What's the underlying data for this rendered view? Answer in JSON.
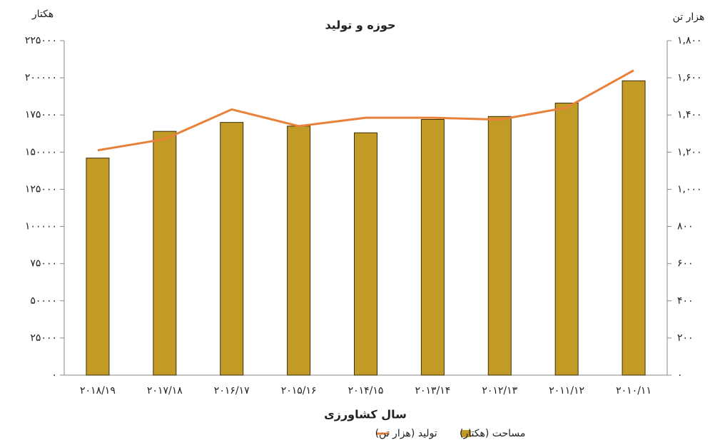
{
  "chart_data": {
    "type": "bar_line",
    "title": "حوزه و تولید",
    "y_label": "هکتار",
    "y2_label": "هزار تن",
    "x_label": "سال کشاورزی",
    "categories": [
      "۲۰۱۸/۱۹",
      "۲۰۱۷/۱۸",
      "۲۰۱۶/۱۷",
      "۲۰۱۵/۱۶",
      "۲۰۱۴/۱۵",
      "۲۰۱۳/۱۴",
      "۲۰۱۲/۱۳",
      "۲۰۱۱/۱۲",
      "۲۰۱۰/۱۱"
    ],
    "series": [
      {
        "name": "مساحت (هکتار)",
        "type": "bar",
        "color": "#c29a26",
        "values": [
          146000,
          164000,
          170000,
          167500,
          163000,
          172000,
          174000,
          183000,
          198000
        ]
      },
      {
        "name": "تولید (هزار تن)",
        "type": "line",
        "axis": "y2",
        "color": "#e8823a",
        "values": [
          1210,
          1270,
          1430,
          1340,
          1385,
          1385,
          1375,
          1440,
          1640
        ]
      }
    ],
    "ylim": [
      0,
      225000
    ],
    "yticks": [
      {
        "value": 0,
        "label": "۰"
      },
      {
        "value": 25000,
        "label": "۲۵۰۰۰"
      },
      {
        "value": 50000,
        "label": "۵۰۰۰۰"
      },
      {
        "value": 75000,
        "label": "۷۵۰۰۰"
      },
      {
        "value": 100000,
        "label": "۱۰۰۰۰۰"
      },
      {
        "value": 125000,
        "label": "۱۲۵۰۰۰"
      },
      {
        "value": 150000,
        "label": "۱۵۰۰۰۰"
      },
      {
        "value": 175000,
        "label": "۱۷۵۰۰۰"
      },
      {
        "value": 200000,
        "label": "۲۰۰۰۰۰"
      },
      {
        "value": 225000,
        "label": "۲۲۵۰۰۰"
      }
    ],
    "y2lim": [
      0,
      1800
    ],
    "y2ticks": [
      {
        "value": 0,
        "label": "۰"
      },
      {
        "value": 200,
        "label": "۲۰۰"
      },
      {
        "value": 400,
        "label": "۴۰۰"
      },
      {
        "value": 600,
        "label": "۶۰۰"
      },
      {
        "value": 800,
        "label": "۸۰۰"
      },
      {
        "value": 1000,
        "label": "۱,۰۰۰"
      },
      {
        "value": 1200,
        "label": "۱,۲۰۰"
      },
      {
        "value": 1400,
        "label": "۱,۴۰۰"
      },
      {
        "value": 1600,
        "label": "۱,۶۰۰"
      },
      {
        "value": 1800,
        "label": "۱,۸۰۰"
      }
    ],
    "legend": "bottom"
  }
}
